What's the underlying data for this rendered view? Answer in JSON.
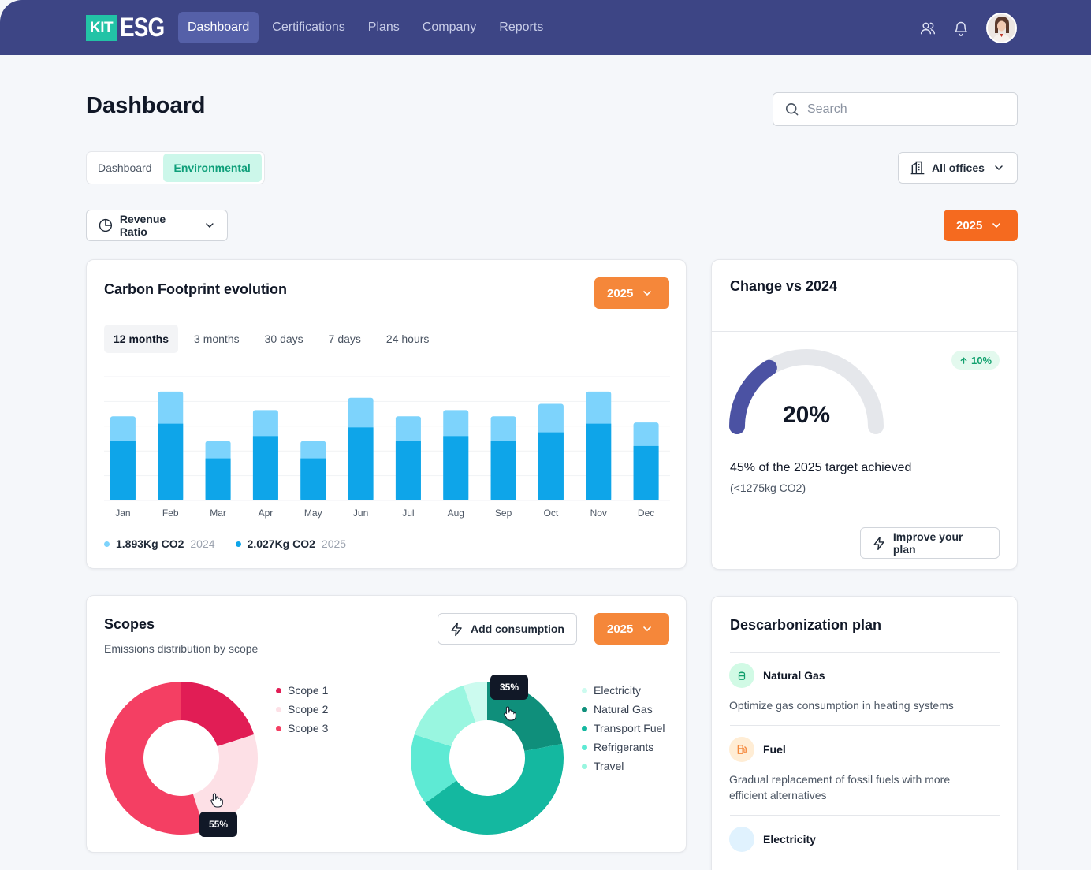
{
  "brand": {
    "kit": "KIT",
    "esg": "ESG"
  },
  "nav": {
    "items": [
      "Dashboard",
      "Certifications",
      "Plans",
      "Company",
      "Reports"
    ],
    "active": 0
  },
  "header": {
    "title": "Dashboard",
    "search_placeholder": "Search"
  },
  "subtabs": {
    "items": [
      "Dashboard",
      "Environmental"
    ],
    "active": 1
  },
  "filters": {
    "offices": "All offices",
    "metric": "Revenue Ratio",
    "year": "2025"
  },
  "carbon": {
    "title": "Carbon Footprint evolution",
    "year": "2025",
    "ranges": [
      "12 months",
      "3 months",
      "30 days",
      "7 days",
      "24 hours"
    ],
    "legend": [
      {
        "value": "1.893Kg CO2",
        "year": "2024",
        "color": "#7dd3fc"
      },
      {
        "value": "2.027Kg CO2",
        "year": "2025",
        "color": "#0ea5e9"
      }
    ]
  },
  "chart_data": {
    "type": "bar",
    "categories": [
      "Jan",
      "Feb",
      "Mar",
      "Apr",
      "May",
      "Jun",
      "Jul",
      "Aug",
      "Sep",
      "Oct",
      "Nov",
      "Dec"
    ],
    "series": [
      {
        "name": "2025",
        "values": [
          48,
          62,
          34,
          52,
          34,
          59,
          48,
          52,
          48,
          55,
          62,
          44
        ]
      },
      {
        "name": "2024",
        "values": [
          68,
          88,
          48,
          73,
          48,
          83,
          68,
          73,
          68,
          78,
          88,
          63
        ]
      }
    ],
    "stacked": "overlay",
    "ylim": [
      0,
      100
    ],
    "grid": true
  },
  "change": {
    "title": "Change vs 2024",
    "gauge_value": "20%",
    "gauge_fraction": 0.2,
    "badge": "10%",
    "target_text": "45% of the 2025 target achieved",
    "target_sub": "(<1275kg CO2)",
    "button": "Improve your plan"
  },
  "scopes": {
    "title": "Scopes",
    "subtitle": "Emissions distribution by scope",
    "add_button": "Add consumption",
    "year": "2025",
    "legend": [
      {
        "label": "Scope 1",
        "color": "#e11d55"
      },
      {
        "label": "Scope 2",
        "color": "#fde0e6"
      },
      {
        "label": "Scope 3",
        "color": "#f43f63"
      }
    ],
    "donut_values": [
      20,
      25,
      55
    ],
    "tooltip": "55%"
  },
  "sources": {
    "legend": [
      {
        "label": "Electricity",
        "color": "#ccfbef"
      },
      {
        "label": "Natural Gas",
        "color": "#0f8f7b"
      },
      {
        "label": "Transport Fuel",
        "color": "#14b8a0"
      },
      {
        "label": "Refrigerants",
        "color": "#5eead4"
      },
      {
        "label": "Travel",
        "color": "#99f6e0"
      }
    ],
    "donut_values": [
      5,
      22,
      43,
      15,
      15
    ],
    "tooltip": "35%"
  },
  "plan": {
    "title": "Descarbonization plan",
    "items": [
      {
        "name": "Natural Gas",
        "desc": "Optimize gas consumption in heating systems"
      },
      {
        "name": "Fuel",
        "desc": "Gradual replacement of fossil fuels with more efficient alternatives"
      },
      {
        "name": "Electricity",
        "desc": ""
      }
    ]
  }
}
